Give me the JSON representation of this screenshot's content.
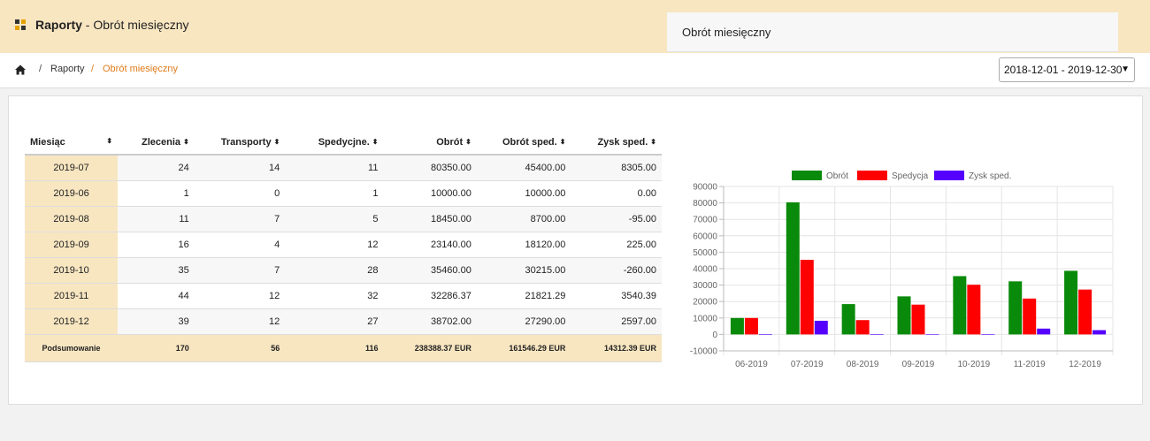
{
  "header": {
    "title_bold": "Raporty",
    "title_rest": " - Obrót miesięczny"
  },
  "breadcrumb": {
    "sep": "/",
    "raporty": "Raporty",
    "current": "Obrót miesięczny"
  },
  "date_range": {
    "value": "2018-12-01 - 2019-12-30",
    "caret": "▼"
  },
  "table": {
    "columns": [
      "Miesiąc",
      "Zlecenia",
      "Transporty",
      "Spedycjne.",
      "Obrót",
      "Obrót sped.",
      "Zysk sped."
    ],
    "sort_glyph": "⬍",
    "rows": [
      [
        "2019-07",
        "24",
        "14",
        "11",
        "80350.00",
        "45400.00",
        "8305.00"
      ],
      [
        "2019-06",
        "1",
        "0",
        "1",
        "10000.00",
        "10000.00",
        "0.00"
      ],
      [
        "2019-08",
        "11",
        "7",
        "5",
        "18450.00",
        "8700.00",
        "-95.00"
      ],
      [
        "2019-09",
        "16",
        "4",
        "12",
        "23140.00",
        "18120.00",
        "225.00"
      ],
      [
        "2019-10",
        "35",
        "7",
        "28",
        "35460.00",
        "30215.00",
        "-260.00"
      ],
      [
        "2019-11",
        "44",
        "12",
        "32",
        "32286.37",
        "21821.29",
        "3540.39"
      ],
      [
        "2019-12",
        "39",
        "12",
        "27",
        "38702.00",
        "27290.00",
        "2597.00"
      ]
    ],
    "summary": [
      "Podsumowanie",
      "170",
      "56",
      "116",
      "238388.37 EUR",
      "161546.29 EUR",
      "14312.39 EUR"
    ]
  },
  "chart_panel": {
    "title": "Obrót miesięczny"
  },
  "chart_data": {
    "type": "bar",
    "categories": [
      "06-2019",
      "07-2019",
      "08-2019",
      "09-2019",
      "10-2019",
      "11-2019",
      "12-2019"
    ],
    "series": [
      {
        "name": "Obrót",
        "color": "#0a8a0a",
        "values": [
          10000,
          80350,
          18450,
          23140,
          35460,
          32286.37,
          38702
        ]
      },
      {
        "name": "Spedycja",
        "color": "#ff0000",
        "values": [
          10000,
          45400,
          8700,
          18120,
          30215,
          21821.29,
          27290
        ]
      },
      {
        "name": "Zysk sped.",
        "color": "#5500ff",
        "values": [
          0,
          8305,
          -95,
          225,
          -260,
          3540.39,
          2597
        ]
      }
    ],
    "ylim": [
      -10000,
      90000
    ],
    "yticks": [
      -10000,
      0,
      10000,
      20000,
      30000,
      40000,
      50000,
      60000,
      70000,
      80000,
      90000
    ],
    "grid": true,
    "legend": "top"
  }
}
